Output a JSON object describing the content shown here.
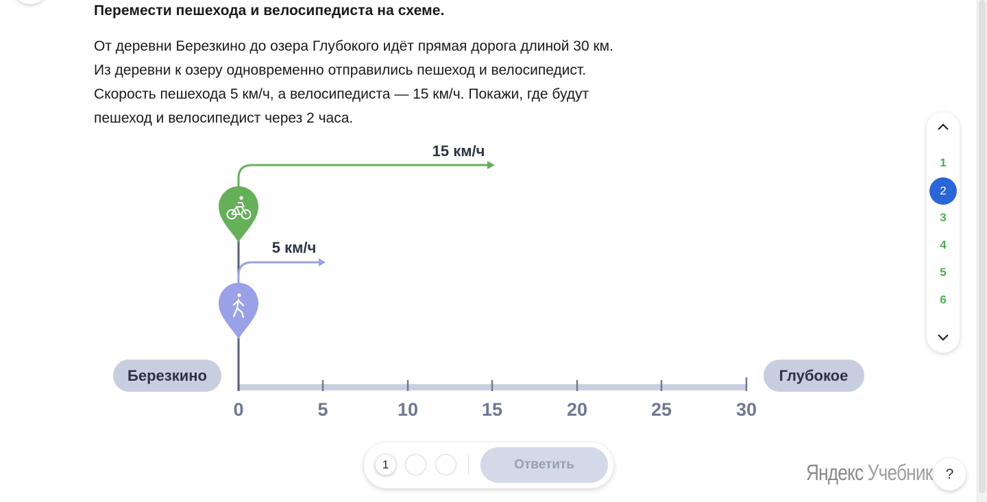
{
  "task": {
    "title": "Перемести пешехода и велосипедиста на схеме.",
    "text_lines": [
      "От деревни Березкино до озера Глубокого идёт прямая дорога длиной 30 км.",
      "Из деревни к озеру одновременно отправились пешеход и велосипедист.",
      "Скорость пешехода 5 км/ч, а велосипедиста — 15 км/ч. Покажи, где будут",
      "пешеход и велосипедист через 2 часа."
    ]
  },
  "diagram": {
    "start_label": "Березкино",
    "end_label": "Глубокое",
    "ticks": [
      "0",
      "5",
      "10",
      "15",
      "20",
      "25",
      "30"
    ],
    "cyclist_speed": "15 км/ч",
    "pedestrian_speed": "5 км/ч",
    "cyclist_icon": "bicycle-icon",
    "pedestrian_icon": "walking-person-icon",
    "colors": {
      "cyclist": "#66b05a",
      "pedestrian": "#9aa1e6",
      "road": "#c9cfe0",
      "label_bg": "#c7cee0"
    }
  },
  "navigation": {
    "items": [
      "1",
      "2",
      "3",
      "4",
      "5",
      "6"
    ],
    "active": "2",
    "active_color": "#2b66d9",
    "done_color": "#4caf50"
  },
  "answer_bar": {
    "attempts": [
      "1",
      "",
      ""
    ],
    "submit_label": "Ответить"
  },
  "branding": {
    "part1": "Яндекс",
    "part2": "Учебник"
  },
  "help": {
    "label": "?"
  }
}
